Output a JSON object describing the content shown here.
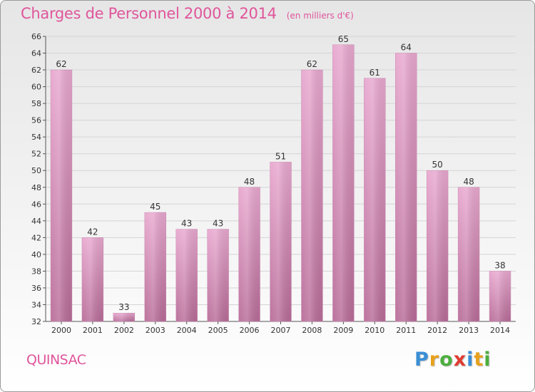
{
  "header": {
    "title": "Charges de Personnel 2000 à 2014",
    "unit": "(en milliers d'€)"
  },
  "footer": {
    "commune": "QUINSAC",
    "brand_letters": [
      {
        "char": "P",
        "color": "#3a8fd6"
      },
      {
        "char": "r",
        "color": "#e8a11c"
      },
      {
        "char": "o",
        "color": "#4cae3e"
      },
      {
        "char": "x",
        "color": "#e03c31"
      },
      {
        "char": "i",
        "color": "#3a8fd6"
      },
      {
        "char": "t",
        "color": "#e8a11c"
      },
      {
        "char": "i",
        "color": "#4cae3e"
      }
    ]
  },
  "colors": {
    "title": "#e0559b",
    "bar_light": "#e8a8cf",
    "bar_dark": "#b86c98",
    "grid": "#d4d4d4"
  },
  "chart_data": {
    "type": "bar",
    "categories": [
      "2000",
      "2001",
      "2002",
      "2003",
      "2004",
      "2005",
      "2006",
      "2007",
      "2008",
      "2009",
      "2010",
      "2011",
      "2012",
      "2013",
      "2014"
    ],
    "values": [
      62,
      42,
      33,
      45,
      43,
      43,
      48,
      51,
      62,
      65,
      61,
      64,
      50,
      48,
      38
    ],
    "ylim": [
      32,
      66
    ],
    "yticks": [
      32,
      34,
      36,
      38,
      40,
      42,
      44,
      46,
      48,
      50,
      52,
      54,
      56,
      58,
      60,
      62,
      64,
      66
    ],
    "grid": true,
    "legend": "none"
  }
}
